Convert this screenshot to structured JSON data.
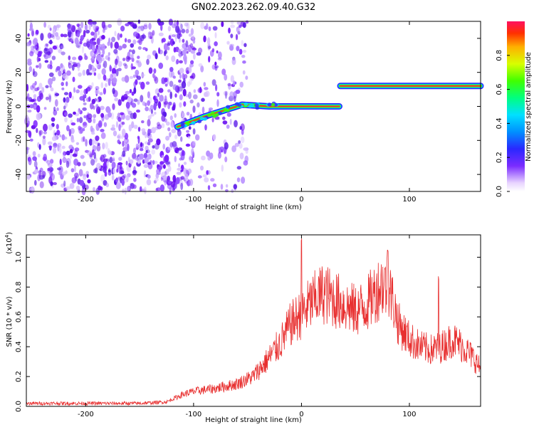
{
  "title": "GN02.2023.262.09.40.G32",
  "chart_data": [
    {
      "type": "heatmap",
      "xlabel": "Height of straight line (km)",
      "ylabel": "Frequency (Hz)",
      "xlim": [
        -255,
        166
      ],
      "ylim": [
        -50,
        50
      ],
      "xticks": [
        -200,
        -100,
        0,
        100
      ],
      "yticks": [
        -40,
        -20,
        0,
        20,
        40
      ],
      "colorbar": {
        "label": "Normalized spectral amplitude",
        "range": [
          0,
          1
        ],
        "ticks": [
          0.0,
          0.2,
          0.4,
          0.6,
          0.8
        ]
      },
      "trend": [
        {
          "x": -115,
          "freq": -12
        },
        {
          "x": -90,
          "freq": -6
        },
        {
          "x": -70,
          "freq": -2
        },
        {
          "x": -55,
          "freq": 1
        },
        {
          "x": -30,
          "freq": 0
        },
        {
          "x": 0,
          "freq": 0
        },
        {
          "x": 35,
          "freq": 0
        },
        {
          "x": 36,
          "freq": 12
        },
        {
          "x": 166,
          "freq": 12
        }
      ],
      "noise_extent": [
        -255,
        -60
      ]
    },
    {
      "type": "line",
      "xlabel": "Height of straight line (km)",
      "ylabel": "SNR (10 * v/v)",
      "yscale_label": "(x10",
      "yscale_exp": "4",
      "yscale_close": ")",
      "xlim": [
        -255,
        166
      ],
      "ylim": [
        0,
        1.15
      ],
      "xticks": [
        -200,
        -100,
        0,
        100
      ],
      "yticks": [
        0.0,
        0.2,
        0.4,
        0.6,
        0.8,
        1.0
      ],
      "color": "#e83030",
      "series": [
        {
          "x": [
            -255,
            -200,
            -150,
            -125,
            -110,
            -100,
            -80,
            -60,
            -45,
            -35,
            -20,
            -10,
            0,
            10,
            20,
            30,
            40,
            50,
            60,
            70,
            75,
            80,
            85,
            90,
            100,
            110,
            120,
            130,
            140,
            150,
            160,
            166
          ],
          "values": [
            0.02,
            0.02,
            0.02,
            0.03,
            0.08,
            0.1,
            0.12,
            0.15,
            0.2,
            0.28,
            0.42,
            0.55,
            0.62,
            0.7,
            0.76,
            0.72,
            0.68,
            0.64,
            0.68,
            0.78,
            0.82,
            0.8,
            0.7,
            0.55,
            0.45,
            0.4,
            0.38,
            0.4,
            0.45,
            0.4,
            0.32,
            0.25
          ],
          "peaks": [
            {
              "x": 0,
              "y": 1.14
            },
            {
              "x": 80,
              "y": 1.05
            },
            {
              "x": 127,
              "y": 0.88
            }
          ]
        }
      ]
    }
  ]
}
